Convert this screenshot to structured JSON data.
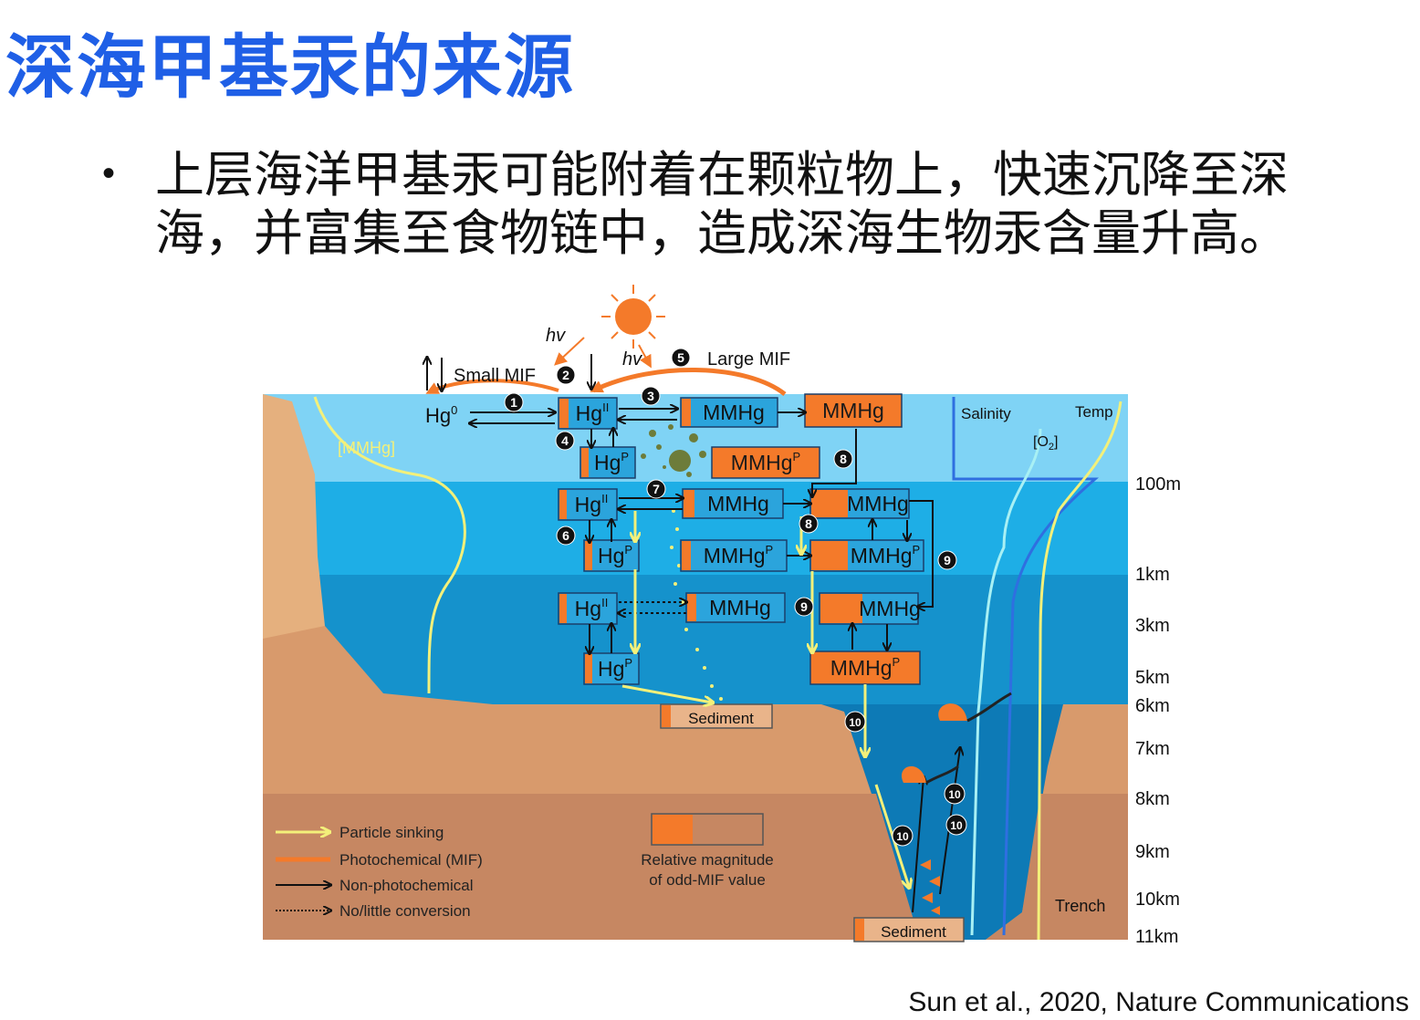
{
  "slide": {
    "title": "深海甲基汞的来源",
    "bullet_text": "上层海洋甲基汞可能附着在颗粒物上，快速沉降至深海，并富集至食物链中，造成深海生物汞含量升高。",
    "citation": "Sun et al., 2020, Nature Communications"
  },
  "diagram": {
    "top_labels": {
      "hv1": "hv",
      "hv2": "hv",
      "small_mif": "Small MIF",
      "large_mif": "Large MIF",
      "hg0": "Hg",
      "hg0_sup": "0",
      "mmhg_profile": "[MMHg]",
      "salinity": "Salinity",
      "temp": "Temp",
      "o2": "[O",
      "o2_sub": "2",
      "o2_end": "]",
      "trench": "Trench"
    },
    "boxes": {
      "hgII_1": {
        "base": "Hg",
        "sup": "II"
      },
      "mmhg_1": {
        "base": "MMHg",
        "sup": ""
      },
      "mmhg_1b": {
        "base": "MMHg",
        "sup": ""
      },
      "hgP_1": {
        "base": "Hg",
        "sup": "P"
      },
      "mmhgP_1": {
        "base": "MMHg",
        "sup": "P"
      },
      "hgII_2": {
        "base": "Hg",
        "sup": "II"
      },
      "mmhg_2": {
        "base": "MMHg",
        "sup": ""
      },
      "mmhg_2b": {
        "base": "MMHg",
        "sup": ""
      },
      "hgP_2": {
        "base": "Hg",
        "sup": "P"
      },
      "mmhgP_2": {
        "base": "MMHg",
        "sup": "P"
      },
      "mmhgP_2b": {
        "base": "MMHg",
        "sup": "P"
      },
      "hgII_3": {
        "base": "Hg",
        "sup": "II"
      },
      "mmhg_3": {
        "base": "MMHg",
        "sup": ""
      },
      "mmhg_3b": {
        "base": "MMHg",
        "sup": ""
      },
      "hgP_3": {
        "base": "Hg",
        "sup": "P"
      },
      "mmhgP_3": {
        "base": "MMHg",
        "sup": "P"
      },
      "sediment_1": {
        "base": "Sediment",
        "sup": ""
      },
      "sediment_2": {
        "base": "Sediment",
        "sup": ""
      }
    },
    "step_numbers": [
      "1",
      "2",
      "3",
      "4",
      "5",
      "6",
      "7",
      "8",
      "8",
      "9",
      "9",
      "10",
      "10",
      "10",
      "10"
    ],
    "depth_labels": [
      "100m",
      "1km",
      "3km",
      "5km",
      "6km",
      "7km",
      "8km",
      "9km",
      "10km",
      "11km"
    ],
    "legend": {
      "particle_sinking": "Particle sinking",
      "photochemical": "Photochemical (MIF)",
      "non_photochemical": "Non-photochemical",
      "no_conversion": "No/little conversion",
      "magnitude_line1": "Relative magnitude",
      "magnitude_line2": "of odd-MIF value"
    },
    "colors": {
      "surface_water": "#7fd3f5",
      "mid_water": "#1eaee6",
      "deep_water": "#1290c9",
      "abyss_water": "#0d78b5",
      "seafloor": "#d89a6c",
      "sediment_dark": "#c58964",
      "orange": "#f47a2a",
      "yellow": "#f3f07a",
      "title_blue": "#1f5fe6"
    }
  }
}
